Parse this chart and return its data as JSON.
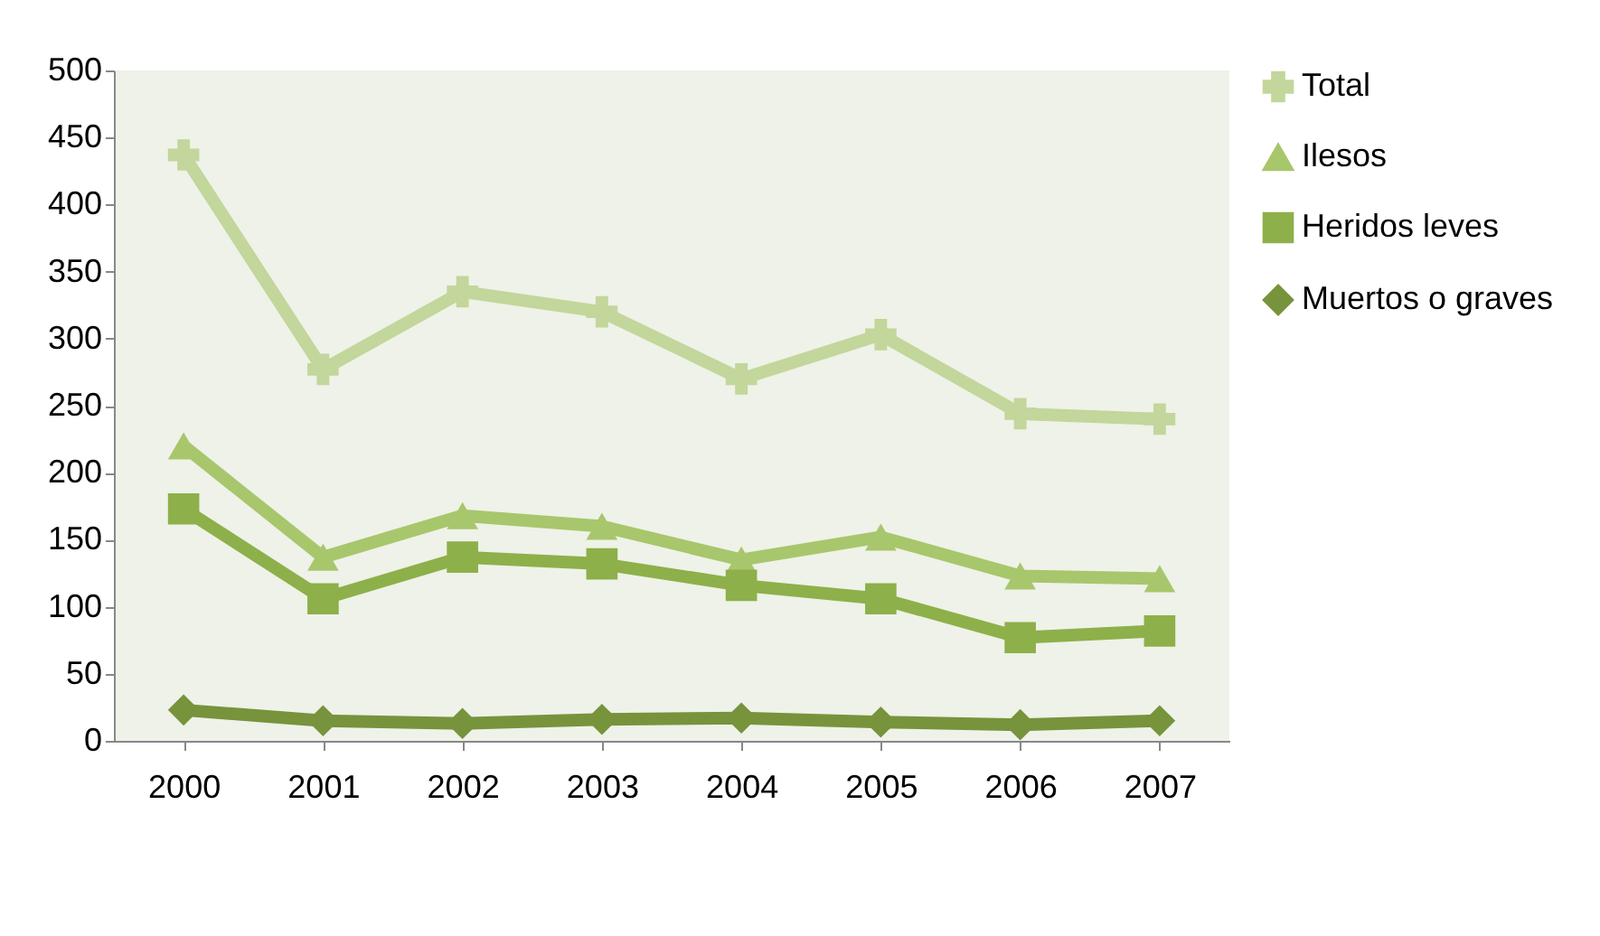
{
  "chart_data": {
    "type": "line",
    "categories": [
      "2000",
      "2001",
      "2002",
      "2003",
      "2004",
      "2005",
      "2006",
      "2007"
    ],
    "series": [
      {
        "name": "Total",
        "color": "#c3d69b",
        "marker": "cross",
        "values": [
          437,
          277,
          335,
          320,
          270,
          303,
          244,
          240
        ]
      },
      {
        "name": "Ilesos",
        "color": "#a8c66c",
        "marker": "triangle",
        "values": [
          220,
          137,
          168,
          160,
          135,
          152,
          123,
          121
        ]
      },
      {
        "name": "Heridos leves",
        "color": "#8db04a",
        "marker": "square",
        "values": [
          173,
          106,
          137,
          132,
          116,
          106,
          77,
          82
        ]
      },
      {
        "name": "Muertos o graves",
        "color": "#77933c",
        "marker": "diamond",
        "values": [
          23,
          15,
          13,
          16,
          17,
          14,
          12,
          15
        ]
      }
    ],
    "ylim": [
      0,
      500
    ],
    "yticks": [
      0,
      50,
      100,
      150,
      200,
      250,
      300,
      350,
      400,
      450,
      500
    ],
    "grid": false,
    "legend": "right",
    "line_style": "solid"
  }
}
